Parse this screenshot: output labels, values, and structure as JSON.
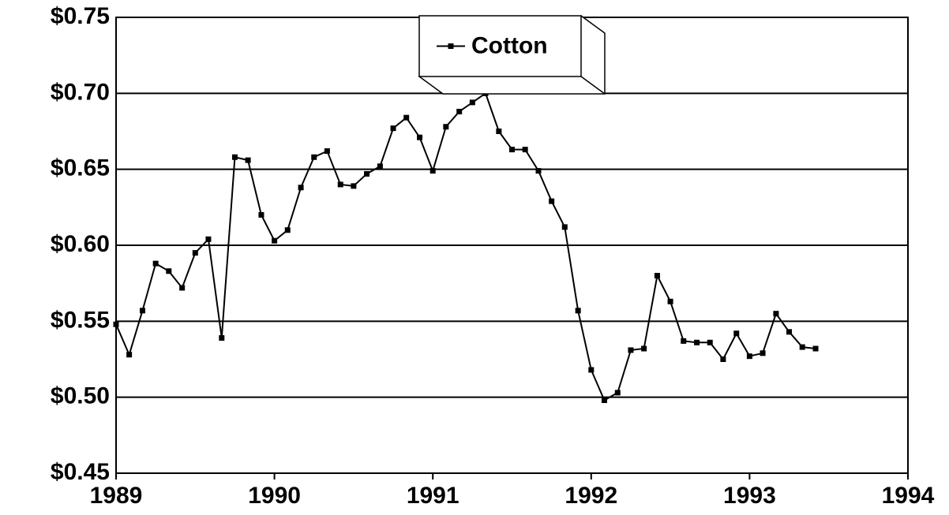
{
  "chart_data": {
    "type": "line",
    "x": [
      1989,
      1989.083,
      1989.167,
      1989.25,
      1989.333,
      1989.417,
      1989.5,
      1989.583,
      1989.667,
      1989.75,
      1989.833,
      1989.917,
      1990,
      1990.083,
      1990.167,
      1990.25,
      1990.333,
      1990.417,
      1990.5,
      1990.583,
      1990.667,
      1990.75,
      1990.833,
      1990.917,
      1991,
      1991.083,
      1991.167,
      1991.25,
      1991.333,
      1991.417,
      1991.5,
      1991.583,
      1991.667,
      1991.75,
      1991.833,
      1991.917,
      1992,
      1992.083,
      1992.167,
      1992.25,
      1992.333,
      1992.417,
      1992.5,
      1992.583,
      1992.667,
      1992.75,
      1992.833,
      1992.917,
      1993,
      1993.083,
      1993.167,
      1993.25,
      1993.333,
      1993.417
    ],
    "series": [
      {
        "name": "Cotton",
        "color": "#000000",
        "values": [
          0.548,
          0.528,
          0.557,
          0.588,
          0.583,
          0.572,
          0.595,
          0.604,
          0.539,
          0.658,
          0.656,
          0.62,
          0.603,
          0.61,
          0.638,
          0.658,
          0.662,
          0.64,
          0.639,
          0.647,
          0.652,
          0.677,
          0.684,
          0.671,
          0.649,
          0.678,
          0.688,
          0.694,
          0.7,
          0.675,
          0.663,
          0.663,
          0.649,
          0.629,
          0.612,
          0.557,
          0.518,
          0.498,
          0.503,
          0.531,
          0.532,
          0.58,
          0.563,
          0.537,
          0.536,
          0.536,
          0.525,
          0.542,
          0.527,
          0.529,
          0.555,
          0.543,
          0.533,
          0.532
        ]
      }
    ],
    "xlim": [
      1989,
      1994
    ],
    "xticks": [
      1989,
      1990,
      1991,
      1992,
      1993,
      1994
    ],
    "ylim": [
      0.45,
      0.75
    ],
    "yticks": [
      {
        "value": 0.45,
        "label": "$0.45"
      },
      {
        "value": 0.5,
        "label": "$0.50"
      },
      {
        "value": 0.55,
        "label": "$0.55"
      },
      {
        "value": 0.6,
        "label": "$0.60"
      },
      {
        "value": 0.65,
        "label": "$0.65"
      },
      {
        "value": 0.7,
        "label": "$0.70"
      },
      {
        "value": 0.75,
        "label": "$0.75"
      }
    ],
    "grid": true,
    "legend": "top"
  }
}
